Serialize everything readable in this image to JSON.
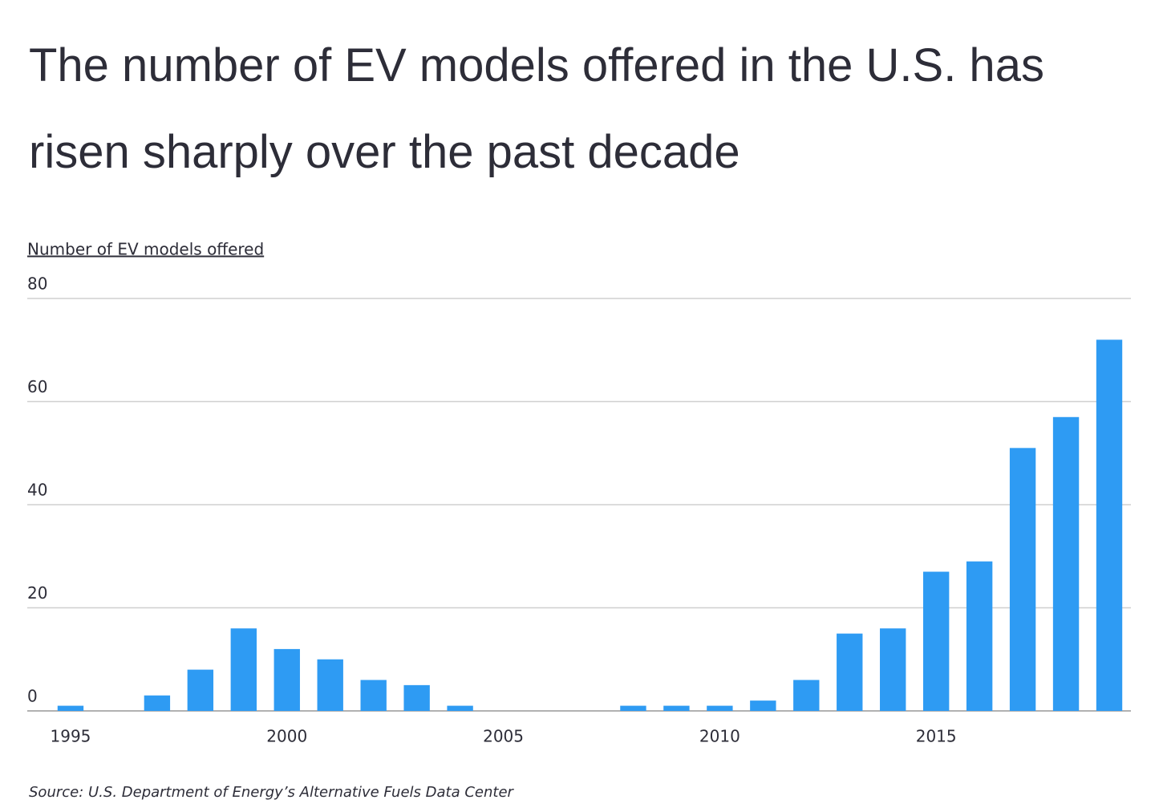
{
  "chart_data": {
    "type": "bar",
    "title": "The number of EV models offered in the U.S. has risen sharply over the past decade",
    "y_label": "Number of EV models offered",
    "source": "Source:  U.S. Department of Energy’s Alternative Fuels Data Center",
    "x": [
      1995,
      1996,
      1997,
      1998,
      1999,
      2000,
      2001,
      2002,
      2003,
      2004,
      2005,
      2006,
      2007,
      2008,
      2009,
      2010,
      2011,
      2012,
      2013,
      2014,
      2015,
      2016,
      2017,
      2018,
      2019
    ],
    "values": [
      1,
      0,
      3,
      8,
      16,
      12,
      10,
      6,
      5,
      1,
      0,
      0,
      0,
      1,
      1,
      1,
      2,
      6,
      15,
      16,
      27,
      29,
      51,
      57,
      72
    ],
    "color": "#2e9bf3",
    "xlim": [
      1994,
      2019.5
    ],
    "xticks": [
      1995,
      2000,
      2005,
      2010,
      2015
    ],
    "ylim": [
      0,
      80
    ],
    "yticks": [
      0,
      20,
      40,
      60,
      80
    ],
    "grid": true
  }
}
